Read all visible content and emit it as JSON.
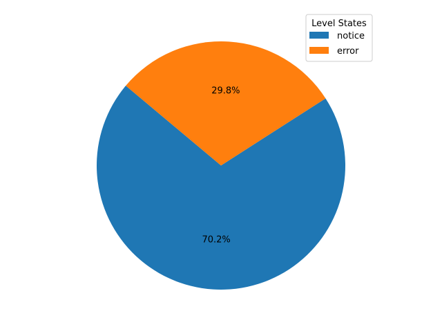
{
  "chart_data": {
    "type": "pie",
    "title": "",
    "slices": [
      {
        "label": "notice",
        "value": 70.2,
        "pct_label": "70.2%",
        "color": "#1f77b4"
      },
      {
        "label": "error",
        "value": 29.8,
        "pct_label": "29.8%",
        "color": "#ff7f0e"
      }
    ],
    "start_angle_deg": 140,
    "direction": "counterclockwise",
    "legend": {
      "title": "Level States",
      "placement": "top-right"
    }
  }
}
